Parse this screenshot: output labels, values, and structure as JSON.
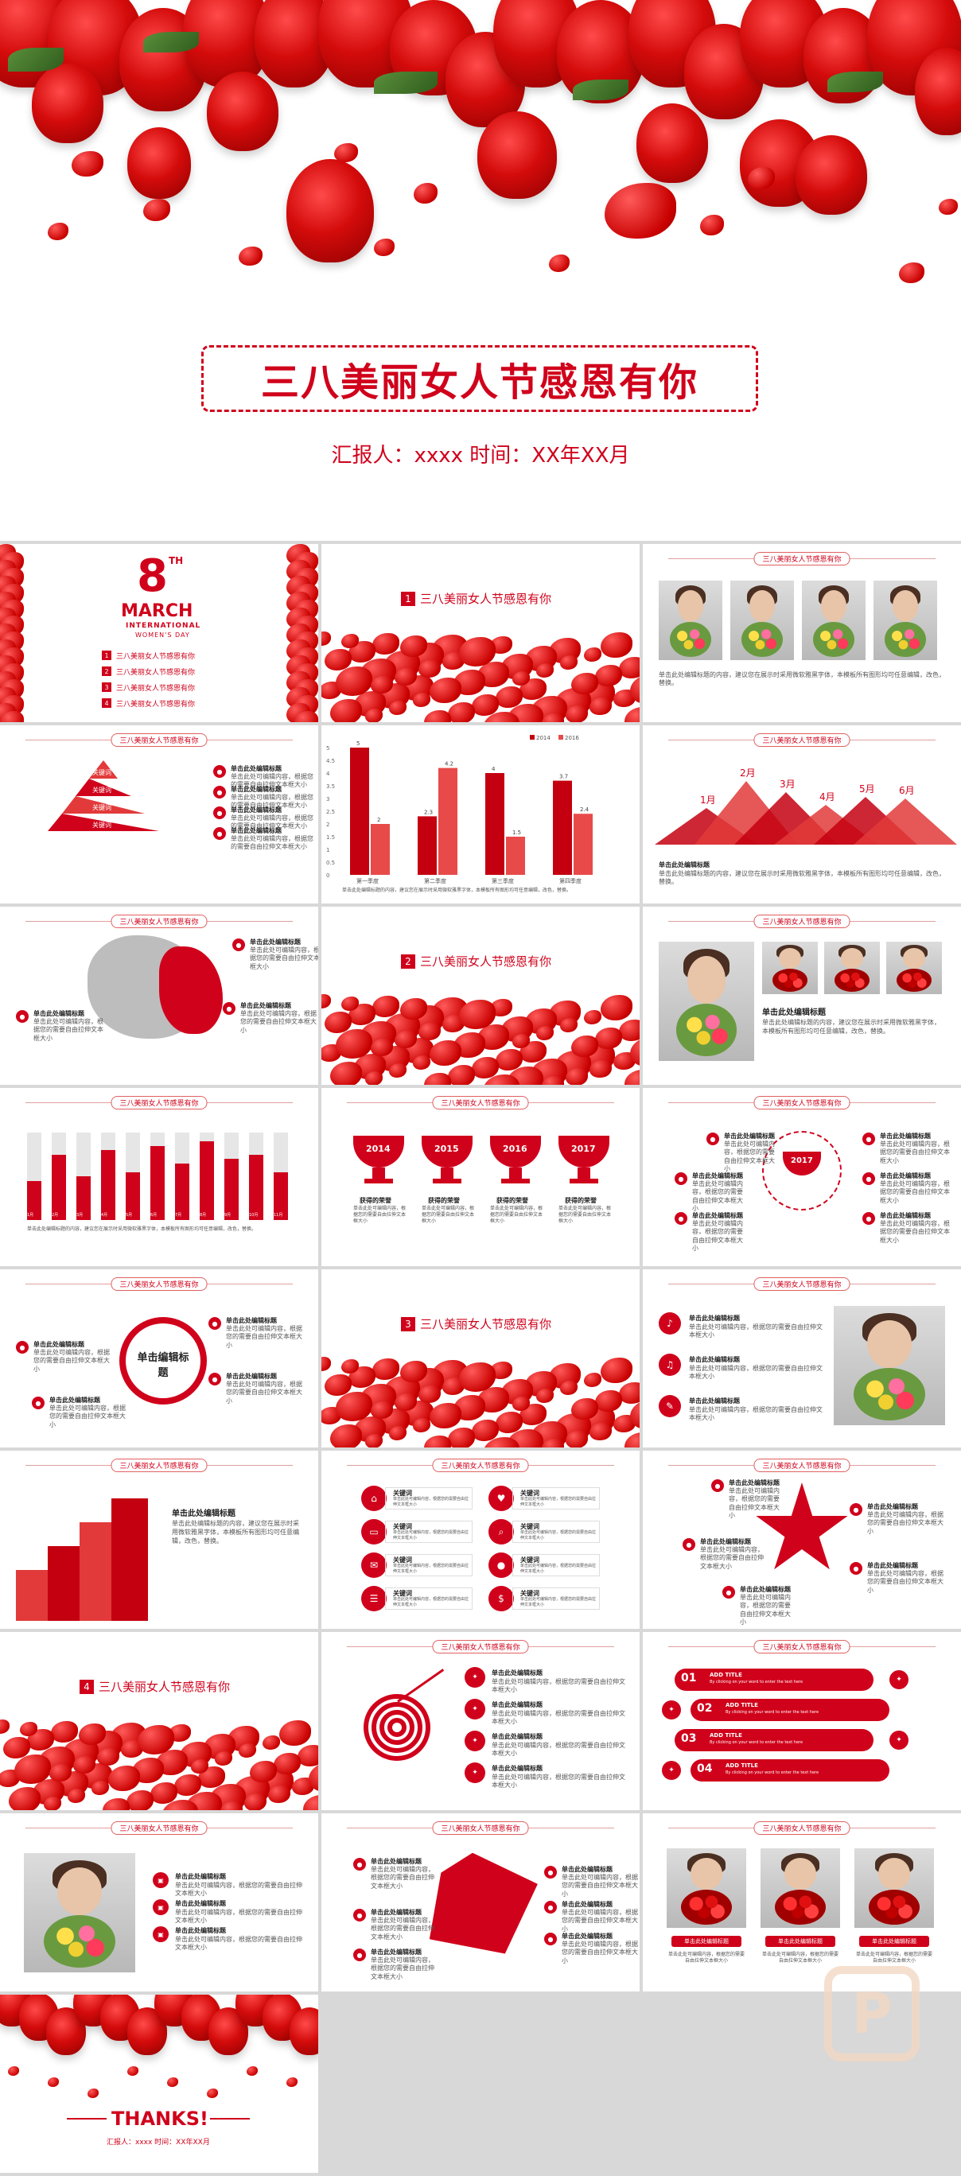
{
  "hero": {
    "title": "三八美丽女人节感恩有你",
    "subtitle": "汇报人：xxxx   时间：XX年XX月"
  },
  "header_tag": "三八美丽女人节感恩有你",
  "march": {
    "num": "8",
    "sup": "TH",
    "month": "MARCH",
    "line1": "INTERNATIONAL",
    "line2": "WOMEN'S DAY",
    "items": [
      "三八美丽女人节感恩有你",
      "三八美丽女人节感恩有你",
      "三八美丽女人节感恩有你",
      "三八美丽女人节感恩有你"
    ]
  },
  "sections": [
    {
      "num": "1",
      "title": "三八美丽女人节感恩有你"
    },
    {
      "num": "2",
      "title": "三八美丽女人节感恩有你"
    },
    {
      "num": "3",
      "title": "三八美丽女人节感恩有你"
    },
    {
      "num": "4",
      "title": "三八美丽女人节感恩有你"
    }
  ],
  "labels": {
    "edit_title": "单击此处编辑标题",
    "edit_body": "单击此处编辑标题的内容，建议您在展示时采用微软雅黑字体，本模板所有图形均可任意编辑，改色，替换。",
    "edit_title_short": "单击编辑标题",
    "small_body": "单击此处可编辑内容，根据您的需要自由拉伸文本框大小",
    "keyword": "关键词",
    "add_title": "ADD TITLE",
    "add_body": "By clicking on your word to enter the text here",
    "gain_prize": "获得的荣誉",
    "click_center": "单击编辑标题",
    "desc_btn": "单击此处编辑标题",
    "thanks": "THANKS!",
    "thanks_sub": "汇报人：xxxx  时间：XX年XX月"
  },
  "pyramid": [
    "关键词",
    "关键词",
    "关键词",
    "关键词"
  ],
  "trophies": [
    "2014",
    "2015",
    "2016",
    "2017"
  ],
  "trophy_center": "2017",
  "steps": [
    "01",
    "02",
    "03",
    "04"
  ],
  "months": [
    "1月",
    "2月",
    "3月",
    "4月",
    "5月",
    "6月"
  ],
  "colors": {
    "accent": "#d0021b",
    "light": "#e84a4a"
  },
  "chart_data": [
    {
      "type": "bar",
      "categories": [
        "第一季度",
        "第二季度",
        "第三季度",
        "第四季度"
      ],
      "series": [
        {
          "name": "2014",
          "values": [
            5,
            2.3,
            4,
            3.7
          ]
        },
        {
          "name": "2016",
          "values": [
            2,
            4.2,
            1.5,
            2.4
          ]
        }
      ],
      "ylim": [
        0,
        5
      ],
      "yticks": [
        "5",
        "4.5",
        "4",
        "3.5",
        "3",
        "2.5",
        "2",
        "1.5",
        "1",
        "0.5",
        "0"
      ],
      "data_labels": [
        "5",
        "2",
        "2.3",
        "4.2",
        "4",
        "1.5",
        "3.7",
        "2.4"
      ],
      "legend": "top-right"
    }
  ],
  "tenbars": {
    "labels": [
      "1月",
      "2月",
      "3月",
      "4月",
      "5月",
      "6月",
      "7月",
      "8月",
      "9月",
      "10月",
      "11月"
    ],
    "values": [
      0.45,
      0.75,
      0.5,
      0.8,
      0.55,
      0.85,
      0.65,
      0.9,
      0.7,
      0.75,
      0.55
    ]
  }
}
